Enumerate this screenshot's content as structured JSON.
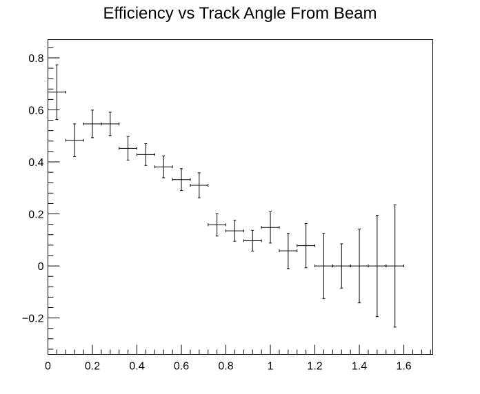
{
  "chart_data": {
    "type": "scatter",
    "title": "Efficiency vs Track Angle From Beam",
    "xlabel": "",
    "ylabel": "",
    "xlim": [
      0,
      1.73
    ],
    "ylim": [
      -0.34,
      0.87
    ],
    "grid": false,
    "x_major_ticks": [
      0,
      0.2,
      0.4,
      0.6,
      0.8,
      1,
      1.2,
      1.4,
      1.6
    ],
    "x_tick_labels": [
      "0",
      "0.2",
      "0.4",
      "0.6",
      "0.8",
      "1",
      "1.2",
      "1.4",
      "1.6"
    ],
    "y_major_ticks": [
      -0.2,
      0,
      0.2,
      0.4,
      0.6,
      0.8
    ],
    "y_tick_labels": [
      "−0.2",
      "0",
      "0.2",
      "0.4",
      "0.6",
      "0.8"
    ],
    "points": [
      {
        "x": 0.04,
        "y": 0.668,
        "xerr": 0.04,
        "yerr": 0.105
      },
      {
        "x": 0.12,
        "y": 0.483,
        "xerr": 0.04,
        "yerr": 0.063
      },
      {
        "x": 0.2,
        "y": 0.546,
        "xerr": 0.04,
        "yerr": 0.053
      },
      {
        "x": 0.28,
        "y": 0.546,
        "xerr": 0.04,
        "yerr": 0.045
      },
      {
        "x": 0.36,
        "y": 0.452,
        "xerr": 0.04,
        "yerr": 0.045
      },
      {
        "x": 0.44,
        "y": 0.428,
        "xerr": 0.04,
        "yerr": 0.042
      },
      {
        "x": 0.52,
        "y": 0.381,
        "xerr": 0.04,
        "yerr": 0.042
      },
      {
        "x": 0.6,
        "y": 0.332,
        "xerr": 0.04,
        "yerr": 0.042
      },
      {
        "x": 0.68,
        "y": 0.31,
        "xerr": 0.04,
        "yerr": 0.048
      },
      {
        "x": 0.76,
        "y": 0.158,
        "xerr": 0.04,
        "yerr": 0.043
      },
      {
        "x": 0.84,
        "y": 0.135,
        "xerr": 0.04,
        "yerr": 0.04
      },
      {
        "x": 0.92,
        "y": 0.097,
        "xerr": 0.04,
        "yerr": 0.04
      },
      {
        "x": 1.0,
        "y": 0.148,
        "xerr": 0.04,
        "yerr": 0.06
      },
      {
        "x": 1.08,
        "y": 0.058,
        "xerr": 0.04,
        "yerr": 0.068
      },
      {
        "x": 1.16,
        "y": 0.078,
        "xerr": 0.04,
        "yerr": 0.085
      },
      {
        "x": 1.24,
        "y": 0.0,
        "xerr": 0.04,
        "yerr": 0.125
      },
      {
        "x": 1.32,
        "y": 0.0,
        "xerr": 0.04,
        "yerr": 0.085
      },
      {
        "x": 1.4,
        "y": 0.0,
        "xerr": 0.04,
        "yerr": 0.142
      },
      {
        "x": 1.48,
        "y": 0.0,
        "xerr": 0.04,
        "yerr": 0.195
      },
      {
        "x": 1.56,
        "y": 0.0,
        "xerr": 0.04,
        "yerr": 0.235
      }
    ]
  }
}
